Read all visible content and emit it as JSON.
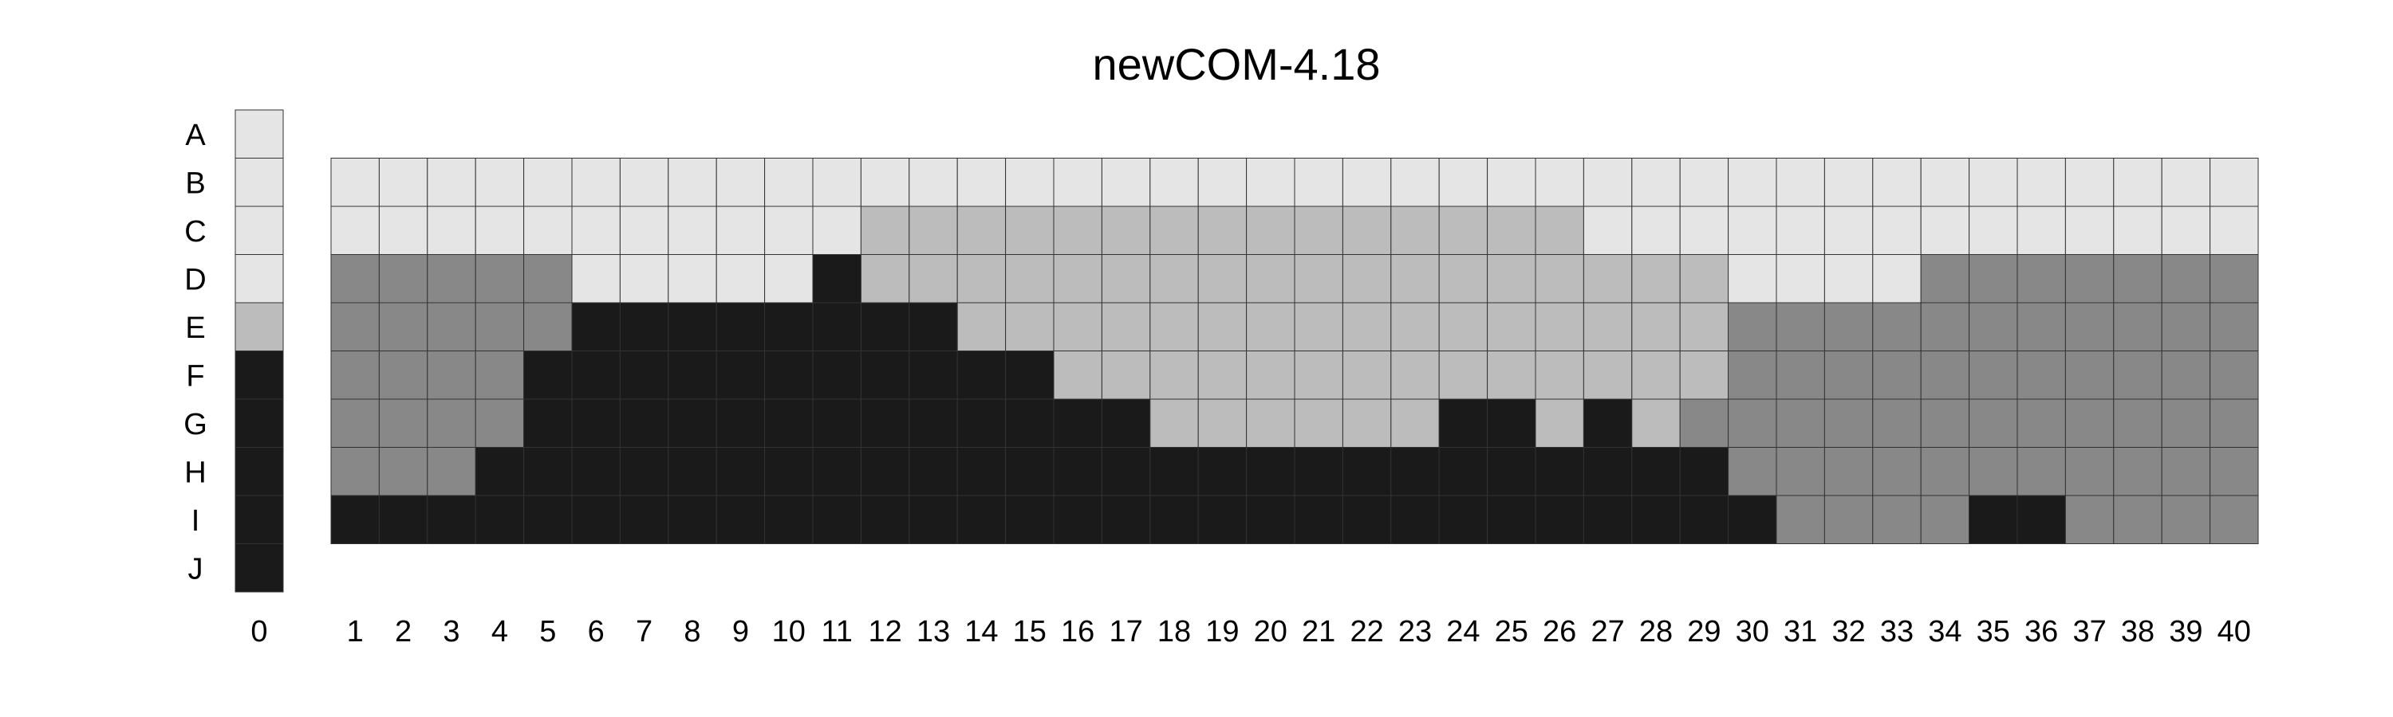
{
  "chart_data": {
    "type": "heatmap",
    "title": "newCOM-4.18",
    "xlabel": "",
    "ylabel": "",
    "row_labels": [
      "A",
      "B",
      "C",
      "D",
      "E",
      "F",
      "G",
      "H",
      "I",
      "J"
    ],
    "reference_column": {
      "label": "0",
      "values": [
        1,
        1,
        1,
        1,
        2,
        4,
        4,
        4,
        4,
        4
      ]
    },
    "columns": [
      "1",
      "2",
      "3",
      "4",
      "5",
      "6",
      "7",
      "8",
      "9",
      "10",
      "11",
      "12",
      "13",
      "14",
      "15",
      "16",
      "17",
      "18",
      "19",
      "20",
      "21",
      "22",
      "23",
      "24",
      "25",
      "26",
      "27",
      "28",
      "29",
      "30",
      "31",
      "32",
      "33",
      "34",
      "35",
      "36",
      "37",
      "38",
      "39",
      "40"
    ],
    "grid_rows": [
      "B",
      "C",
      "D",
      "E",
      "F",
      "G",
      "H",
      "I"
    ],
    "grid_values": [
      [
        1,
        1,
        1,
        1,
        1,
        1,
        1,
        1,
        1,
        1,
        1,
        1,
        1,
        1,
        1,
        1,
        1,
        1,
        1,
        1,
        1,
        1,
        1,
        1,
        1,
        1,
        1,
        1,
        1,
        1,
        1,
        1,
        1,
        1,
        1,
        1,
        1,
        1,
        1,
        1
      ],
      [
        1,
        1,
        1,
        1,
        1,
        1,
        1,
        1,
        1,
        1,
        1,
        2,
        2,
        2,
        2,
        2,
        2,
        2,
        2,
        2,
        2,
        2,
        2,
        2,
        2,
        2,
        1,
        1,
        1,
        1,
        1,
        1,
        1,
        1,
        1,
        1,
        1,
        1,
        1,
        1
      ],
      [
        3,
        3,
        3,
        3,
        3,
        1,
        1,
        1,
        1,
        1,
        4,
        2,
        2,
        2,
        2,
        2,
        2,
        2,
        2,
        2,
        2,
        2,
        2,
        2,
        2,
        2,
        2,
        2,
        2,
        1,
        1,
        1,
        1,
        3,
        3,
        3,
        3,
        3,
        3,
        3
      ],
      [
        3,
        3,
        3,
        3,
        3,
        4,
        4,
        4,
        4,
        4,
        4,
        4,
        4,
        2,
        2,
        2,
        2,
        2,
        2,
        2,
        2,
        2,
        2,
        2,
        2,
        2,
        2,
        2,
        2,
        3,
        3,
        3,
        3,
        3,
        3,
        3,
        3,
        3,
        3,
        3
      ],
      [
        3,
        3,
        3,
        3,
        4,
        4,
        4,
        4,
        4,
        4,
        4,
        4,
        4,
        4,
        4,
        2,
        2,
        2,
        2,
        2,
        2,
        2,
        2,
        2,
        2,
        2,
        2,
        2,
        2,
        3,
        3,
        3,
        3,
        3,
        3,
        3,
        3,
        3,
        3,
        3
      ],
      [
        3,
        3,
        3,
        3,
        4,
        4,
        4,
        4,
        4,
        4,
        4,
        4,
        4,
        4,
        4,
        4,
        4,
        2,
        2,
        2,
        2,
        2,
        2,
        4,
        4,
        2,
        4,
        2,
        3,
        3,
        3,
        3,
        3,
        3,
        3,
        3,
        3,
        3,
        3,
        3
      ],
      [
        3,
        3,
        3,
        4,
        4,
        4,
        4,
        4,
        4,
        4,
        4,
        4,
        4,
        4,
        4,
        4,
        4,
        4,
        4,
        4,
        4,
        4,
        4,
        4,
        4,
        4,
        4,
        4,
        4,
        3,
        3,
        3,
        3,
        3,
        3,
        3,
        3,
        3,
        3,
        3
      ],
      [
        4,
        4,
        4,
        4,
        4,
        4,
        4,
        4,
        4,
        4,
        4,
        4,
        4,
        4,
        4,
        4,
        4,
        4,
        4,
        4,
        4,
        4,
        4,
        4,
        4,
        4,
        4,
        4,
        4,
        4,
        3,
        3,
        3,
        3,
        4,
        4,
        3,
        3,
        3,
        3
      ]
    ],
    "legend": "none",
    "grid": true,
    "colors": {
      "1": "#e5e5e5",
      "2": "#bcbcbc",
      "3": "#888888",
      "4": "#1a1a1a",
      "cell_border": "#333333"
    }
  }
}
